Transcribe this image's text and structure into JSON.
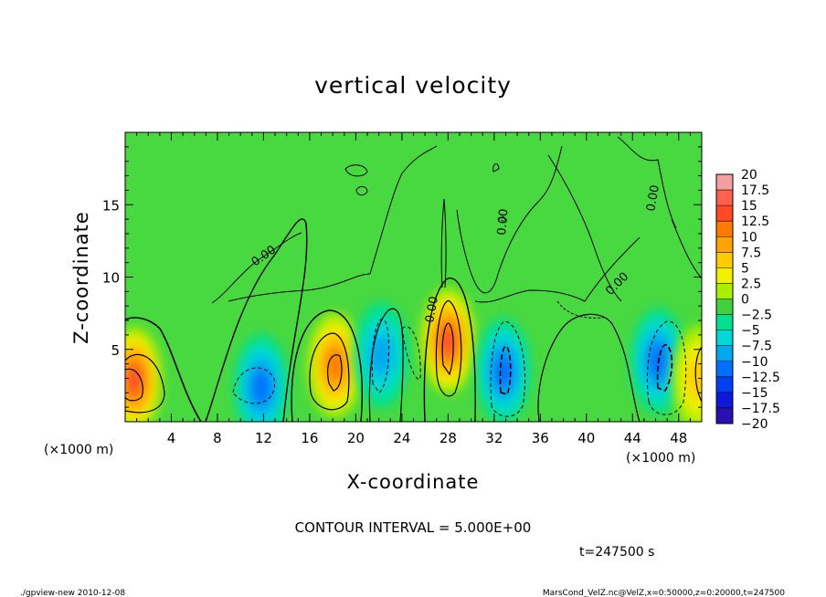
{
  "chart_data": {
    "type": "heatmap",
    "title": "vertical velocity",
    "xlabel": "X-coordinate",
    "ylabel": "Z-coordinate",
    "x_unit": "(×1000 m)",
    "x_unit_right": "(×1000 m)",
    "xlim": [
      0,
      50
    ],
    "ylim": [
      0,
      20
    ],
    "x_ticks": [
      4,
      8,
      12,
      16,
      20,
      24,
      28,
      32,
      36,
      40,
      44,
      48
    ],
    "y_ticks": [
      5,
      10,
      15
    ],
    "colorbar": {
      "labels": [
        "20",
        "17.5",
        "15",
        "12.5",
        "10",
        "7.5",
        "5",
        "2.5",
        "0",
        "−2.5",
        "−5",
        "−7.5",
        "−10",
        "−12.5",
        "−15",
        "−17.5",
        "−20"
      ],
      "colors": [
        "#f5a0a0",
        "#ff6050",
        "#ff4a28",
        "#ff7a00",
        "#ffa300",
        "#ffcc00",
        "#f0f000",
        "#aaee00",
        "#40d040",
        "#00e090",
        "#00d8d8",
        "#00a8f0",
        "#0070ff",
        "#0040f0",
        "#1018d8",
        "#2a10b0",
        "#6020c0"
      ]
    },
    "contour_labels": [
      "0.00",
      "0.00",
      "0.00",
      "0.00",
      "0.00"
    ],
    "features": [
      {
        "x": 0.8,
        "z": 2.9,
        "w": 12.5
      },
      {
        "x": 11.8,
        "z": 2.4,
        "w": -7.5
      },
      {
        "x": 18.2,
        "z": 3.9,
        "w": 12.0
      },
      {
        "x": 22.2,
        "z": 4.6,
        "w": -6.0
      },
      {
        "x": 28.0,
        "z": 5.6,
        "w": 14.0
      },
      {
        "x": 32.8,
        "z": 3.5,
        "w": -8.5
      },
      {
        "x": 46.2,
        "z": 4.2,
        "w": -8.0
      },
      {
        "x": 49.8,
        "z": 3.0,
        "w": 5.0
      }
    ]
  },
  "contour_interval": "CONTOUR INTERVAL = 5.000E+00",
  "time_label": "t=247500 s",
  "footer_left": "./gpview-new   2010-12-08",
  "footer_right": "MarsCond_VelZ.nc@VelZ,x=0:50000,z=0:20000,t=247500"
}
